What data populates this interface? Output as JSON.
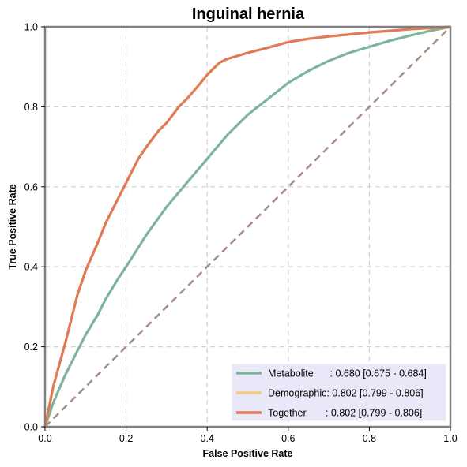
{
  "chart_data": {
    "type": "line",
    "title": "Inguinal hernia",
    "xlabel": "False Positive Rate",
    "ylabel": "True Positive Rate",
    "xlim": [
      0,
      1
    ],
    "ylim": [
      0,
      1
    ],
    "xticks": [
      "0.0",
      "0.2",
      "0.4",
      "0.6",
      "0.8",
      "1.0"
    ],
    "yticks": [
      "0.0",
      "0.2",
      "0.4",
      "0.6",
      "0.8",
      "1.0"
    ],
    "grid": true,
    "legend_position": "bottom-right",
    "diagonal_color": "#a88c7e",
    "series": [
      {
        "name": "Metabolite",
        "label": "Metabolite      : 0.680 [0.675 - 0.684]",
        "color": "#7eb59a",
        "x": [
          0,
          0.02,
          0.05,
          0.08,
          0.1,
          0.13,
          0.15,
          0.18,
          0.2,
          0.25,
          0.3,
          0.35,
          0.4,
          0.45,
          0.5,
          0.55,
          0.6,
          0.65,
          0.7,
          0.75,
          0.8,
          0.85,
          0.9,
          0.95,
          1.0
        ],
        "y": [
          0,
          0.06,
          0.13,
          0.19,
          0.23,
          0.28,
          0.32,
          0.37,
          0.4,
          0.48,
          0.55,
          0.61,
          0.67,
          0.73,
          0.78,
          0.82,
          0.86,
          0.89,
          0.915,
          0.935,
          0.95,
          0.965,
          0.978,
          0.99,
          1.0
        ]
      },
      {
        "name": "Demographic",
        "label": "Demographic: 0.802 [0.799 - 0.806]",
        "color": "#f5c98a",
        "x": [
          0,
          0.02,
          0.05,
          0.08,
          0.1,
          0.13,
          0.15,
          0.18,
          0.2,
          0.23,
          0.25,
          0.28,
          0.3,
          0.33,
          0.35,
          0.38,
          0.4,
          0.43,
          0.45,
          0.5,
          0.55,
          0.6,
          0.65,
          0.7,
          0.75,
          0.8,
          0.85,
          0.9,
          0.95,
          1.0
        ],
        "y": [
          0,
          0.1,
          0.21,
          0.33,
          0.39,
          0.46,
          0.51,
          0.57,
          0.61,
          0.67,
          0.7,
          0.74,
          0.76,
          0.8,
          0.82,
          0.855,
          0.88,
          0.91,
          0.92,
          0.935,
          0.948,
          0.962,
          0.97,
          0.976,
          0.981,
          0.986,
          0.99,
          0.994,
          0.997,
          1.0
        ]
      },
      {
        "name": "Together",
        "label": "Together       : 0.802 [0.799 - 0.806]",
        "color": "#e07b58",
        "x": [
          0,
          0.02,
          0.05,
          0.08,
          0.1,
          0.13,
          0.15,
          0.18,
          0.2,
          0.23,
          0.25,
          0.28,
          0.3,
          0.33,
          0.35,
          0.38,
          0.4,
          0.43,
          0.45,
          0.5,
          0.55,
          0.6,
          0.65,
          0.7,
          0.75,
          0.8,
          0.85,
          0.9,
          0.95,
          1.0
        ],
        "y": [
          0,
          0.1,
          0.21,
          0.33,
          0.39,
          0.46,
          0.51,
          0.57,
          0.61,
          0.67,
          0.7,
          0.74,
          0.76,
          0.8,
          0.82,
          0.855,
          0.88,
          0.91,
          0.92,
          0.935,
          0.948,
          0.962,
          0.97,
          0.976,
          0.981,
          0.986,
          0.99,
          0.994,
          0.997,
          1.0
        ]
      }
    ]
  }
}
